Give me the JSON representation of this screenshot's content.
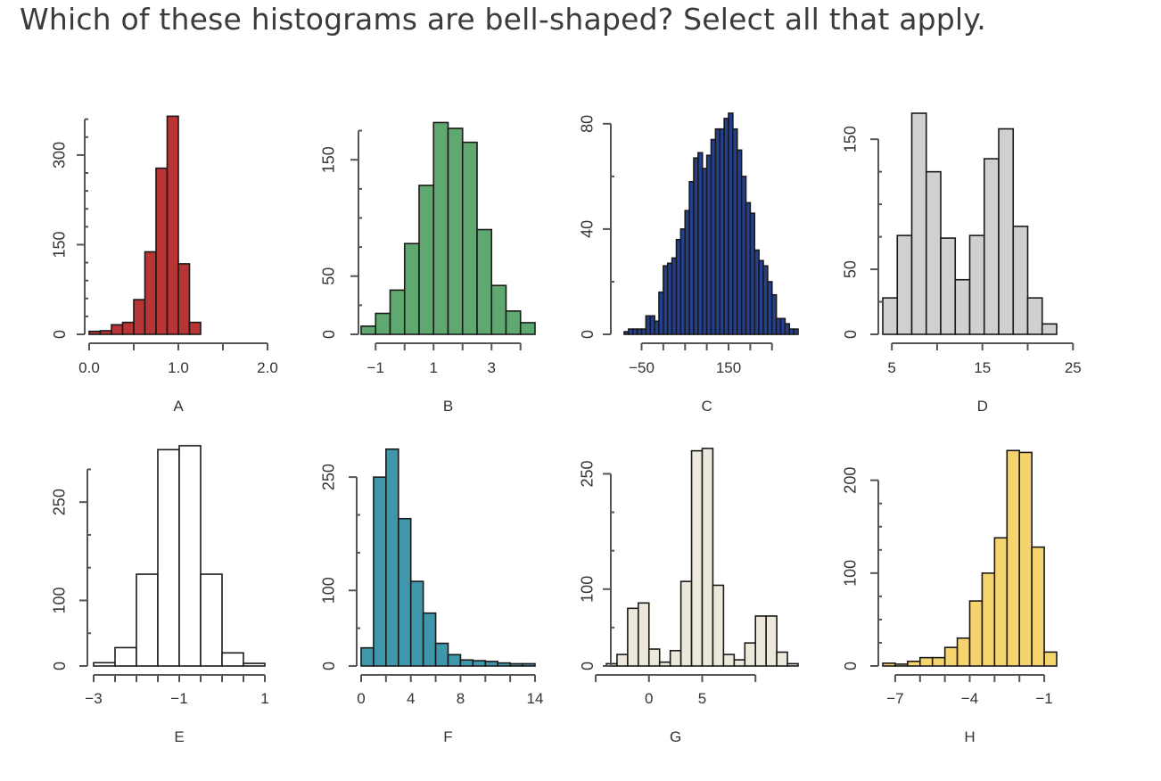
{
  "question": "Which of these histograms are bell-shaped? Select all that apply.",
  "colors": {
    "A": "#b93434",
    "B": "#5fa870",
    "C": "#243f8e",
    "D": "#d0d0d0",
    "E": "#ffffff",
    "F": "#3e97aa",
    "G": "#ece8dc",
    "H": "#f5d46e"
  },
  "chart_data": [
    {
      "type": "bar",
      "xlabel": "A",
      "color": "#b93434",
      "bin_start": 0.0,
      "bin_width": 0.125,
      "values": [
        5,
        6,
        16,
        20,
        58,
        138,
        278,
        365,
        118,
        20
      ],
      "xlim": [
        0.0,
        2.0
      ],
      "ylim": [
        0,
        370
      ],
      "xticks": [
        0.0,
        0.5,
        1.0,
        1.5,
        2.0
      ],
      "xtick_labels": [
        "0.0",
        "",
        "1.0",
        "",
        "2.0"
      ],
      "yticks": [
        0,
        150,
        300
      ],
      "ytick_labels": [
        "0",
        "150",
        "300"
      ],
      "yminor": [
        0,
        30,
        60,
        90,
        120,
        150,
        180,
        210,
        240,
        270,
        300,
        330,
        360
      ]
    },
    {
      "type": "bar",
      "xlabel": "B",
      "color": "#5fa870",
      "bin_start": -1.5,
      "bin_width": 0.5,
      "values": [
        7,
        18,
        38,
        78,
        128,
        182,
        177,
        165,
        90,
        42,
        20,
        10
      ],
      "xlim": [
        -1.5,
        4.5
      ],
      "ylim": [
        0,
        190
      ],
      "xticks": [
        -1,
        0,
        1,
        2,
        3,
        4
      ],
      "xtick_labels": [
        "-1",
        "",
        "1",
        "",
        "3",
        ""
      ],
      "yticks": [
        0,
        50,
        150
      ],
      "ytick_labels": [
        "0",
        "50",
        "150"
      ],
      "yminor": [
        0,
        25,
        50,
        75,
        100,
        125,
        150,
        175
      ]
    },
    {
      "type": "bar",
      "xlabel": "C",
      "color": "#243f8e",
      "bin_start": -90,
      "bin_width": 10,
      "values": [
        1,
        2,
        2,
        2,
        2,
        7,
        7,
        5,
        16,
        26,
        27,
        29,
        36,
        40,
        47,
        58,
        67,
        69,
        63,
        68,
        74,
        78,
        78,
        82,
        84,
        78,
        70,
        60,
        50,
        46,
        32,
        28,
        26,
        20,
        15,
        6,
        6,
        4,
        2,
        2
      ],
      "xlim": [
        -90,
        310
      ],
      "ylim": [
        0,
        84
      ],
      "xticks": [
        -50,
        0,
        50,
        100,
        150,
        200,
        250
      ],
      "xtick_labels": [
        "-50",
        "",
        "",
        "",
        "150",
        "",
        ""
      ],
      "yticks": [
        0,
        40,
        80
      ],
      "ytick_labels": [
        "0",
        "40",
        "80"
      ],
      "yminor": [
        0,
        20,
        40,
        60,
        80
      ]
    },
    {
      "type": "bar",
      "xlabel": "D",
      "color": "#d0d0d0",
      "bin_start": 4,
      "bin_width": 1.6,
      "values": [
        28,
        76,
        170,
        125,
        74,
        42,
        76,
        135,
        158,
        83,
        28,
        8
      ],
      "xlim": [
        4,
        23.2
      ],
      "ylim": [
        0,
        170
      ],
      "xticks": [
        5,
        10,
        15,
        20,
        25
      ],
      "xtick_labels": [
        "5",
        "",
        "15",
        "",
        "25"
      ],
      "yticks": [
        0,
        50,
        150
      ],
      "ytick_labels": [
        "0",
        "50",
        "150"
      ],
      "yminor": [
        0,
        25,
        50,
        75,
        100,
        125,
        150
      ]
    },
    {
      "type": "bar",
      "xlabel": "E",
      "color": "#ffffff",
      "bin_start": -3,
      "bin_width": 0.5,
      "values": [
        5,
        28,
        140,
        330,
        336,
        140,
        20,
        4
      ],
      "xlim": [
        -3,
        1
      ],
      "ylim": [
        0,
        340
      ],
      "xticks": [
        -3,
        -2.5,
        -2,
        -1.5,
        -1,
        -0.5,
        0,
        0.5,
        1
      ],
      "xtick_labels": [
        "-3",
        "",
        "",
        "",
        "-1",
        "",
        "",
        "",
        "1"
      ],
      "yticks": [
        0,
        100,
        250
      ],
      "ytick_labels": [
        "0",
        "100",
        "250"
      ],
      "yminor": [
        0,
        50,
        100,
        150,
        200,
        250,
        300
      ]
    },
    {
      "type": "bar",
      "xlabel": "F",
      "color": "#3e97aa",
      "bin_start": 0,
      "bin_width": 1,
      "values": [
        24,
        250,
        287,
        195,
        112,
        70,
        30,
        15,
        8,
        7,
        6,
        4,
        3,
        3
      ],
      "xlim": [
        0,
        14
      ],
      "ylim": [
        0,
        295
      ],
      "xticks": [
        0,
        2,
        4,
        6,
        8,
        10,
        12,
        14
      ],
      "xtick_labels": [
        "0",
        "",
        "4",
        "",
        "8",
        "",
        "",
        "14"
      ],
      "yticks": [
        0,
        100,
        250
      ],
      "ytick_labels": [
        "0",
        "100",
        "250"
      ],
      "yminor": [
        0,
        50,
        100,
        150,
        200,
        250
      ]
    },
    {
      "type": "bar",
      "xlabel": "G",
      "color": "#ece8dc",
      "bin_start": -4,
      "bin_width": 1,
      "values": [
        3,
        15,
        75,
        82,
        22,
        5,
        20,
        110,
        280,
        283,
        105,
        15,
        8,
        30,
        65,
        65,
        18,
        3
      ],
      "xlim": [
        -4,
        14
      ],
      "ylim": [
        0,
        290
      ],
      "xticks": [
        -5,
        0,
        5,
        10
      ],
      "xtick_labels": [
        "",
        "0",
        "5",
        ""
      ],
      "yticks": [
        0,
        100,
        250
      ],
      "ytick_labels": [
        "0",
        "100",
        "250"
      ],
      "yminor": [
        0,
        50,
        100,
        150,
        200,
        250
      ]
    },
    {
      "type": "bar",
      "xlabel": "H",
      "color": "#f5d46e",
      "bin_start": -7.5,
      "bin_width": 0.5,
      "values": [
        3,
        2,
        5,
        9,
        9,
        20,
        30,
        70,
        100,
        138,
        232,
        230,
        128,
        15
      ],
      "xlim": [
        -7.5,
        -0.5
      ],
      "ylim": [
        0,
        240
      ],
      "xticks": [
        -7,
        -6,
        -5,
        -4,
        -3,
        -2,
        -1
      ],
      "xtick_labels": [
        "-7",
        "",
        "",
        "-4",
        "",
        "",
        "-1"
      ],
      "yticks": [
        0,
        100,
        200
      ],
      "ytick_labels": [
        "0",
        "100",
        "200"
      ],
      "yminor": [
        0,
        25,
        50,
        75,
        100,
        125,
        150,
        175,
        200
      ]
    }
  ]
}
